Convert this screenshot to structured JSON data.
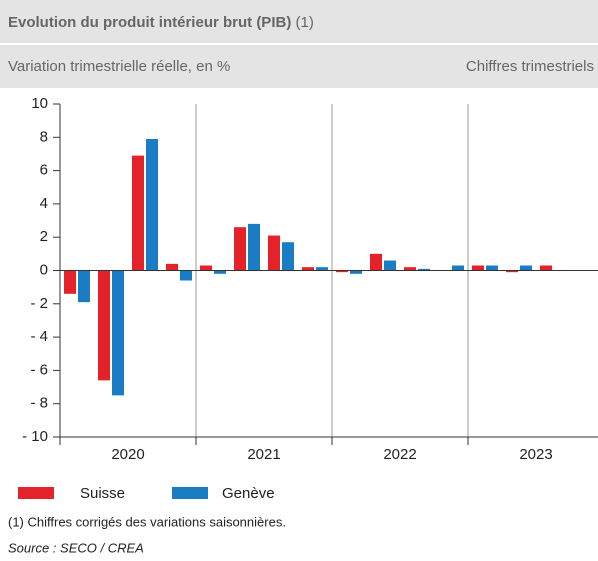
{
  "chart_data": {
    "type": "bar",
    "title": "Evolution du produit intérieur brut (PIB)",
    "title_note": "(1)",
    "subtitle": "Variation trimestrielle réelle, en %",
    "subtitle_right": "Chiffres trimestriels",
    "categories": [
      null,
      null,
      null,
      null,
      null,
      null,
      null,
      null,
      null,
      null,
      null,
      null,
      null,
      null,
      null,
      null
    ],
    "group_labels": [
      "2020",
      "2021",
      "2022",
      "2023"
    ],
    "series": [
      {
        "name": "Suisse",
        "color": "#e3222a",
        "values": [
          -1.4,
          -6.6,
          6.9,
          0.4,
          0.3,
          2.6,
          2.1,
          0.2,
          -0.1,
          1.0,
          0.2,
          0,
          0.3,
          -0.1,
          0.3,
          null
        ]
      },
      {
        "name": "Genève",
        "color": "#1a7dc4",
        "values": [
          -1.9,
          -7.5,
          7.9,
          -0.6,
          -0.2,
          2.8,
          1.7,
          0.2,
          -0.2,
          0.6,
          0.1,
          0.3,
          0.3,
          0.3,
          null,
          null
        ]
      }
    ],
    "ylim": [
      -10,
      10
    ],
    "yticks": [
      {
        "value": -10,
        "label": "- 10"
      },
      {
        "value": -8,
        "label": "- 8"
      },
      {
        "value": -6,
        "label": "- 6"
      },
      {
        "value": -4,
        "label": "- 4"
      },
      {
        "value": -2,
        "label": "- 2"
      },
      0,
      2,
      4,
      6,
      8,
      10
    ],
    "footnote": "(1)  Chiffres corrigés des variations saisonnières.",
    "source": "Source : SECO / CREA"
  }
}
